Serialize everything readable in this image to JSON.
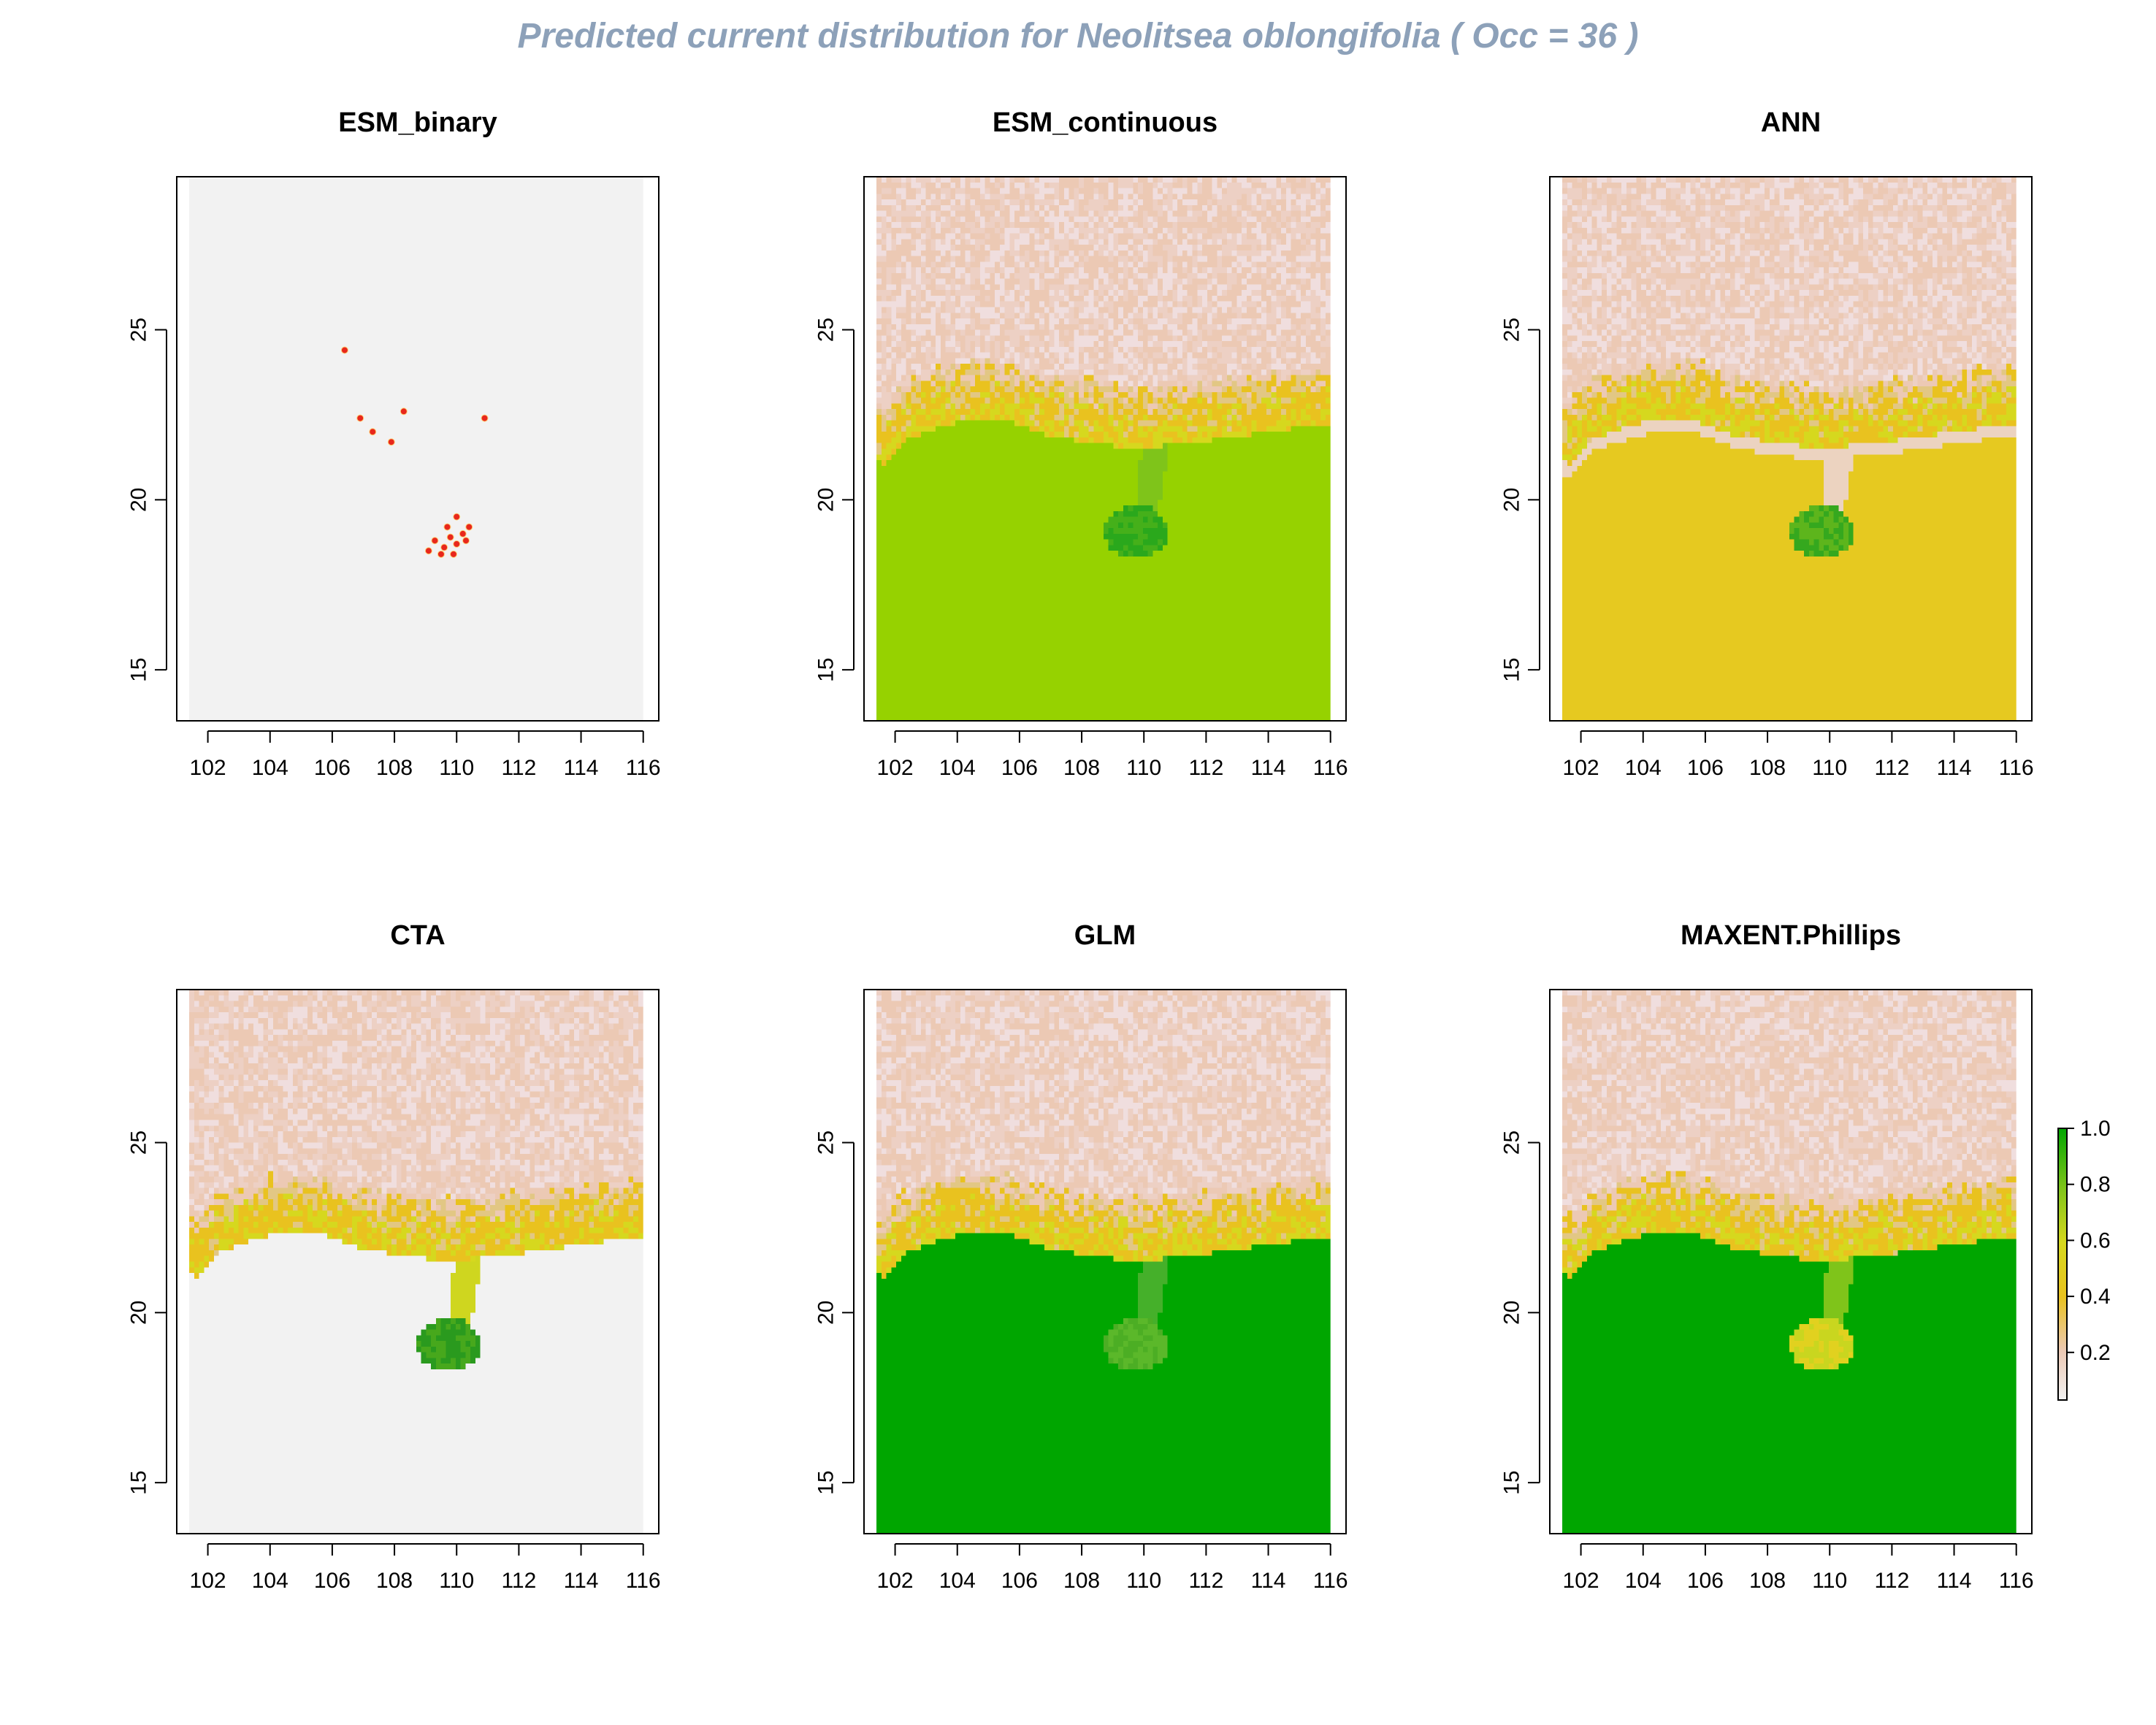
{
  "title": "Predicted current distribution for Neolitsea oblongifolia  ( Occ =  36  )",
  "colors": {
    "title": "#8da1b9",
    "na_background": "#f2f2f2",
    "scale": [
      "#f2f2f2",
      "#ecc9b4",
      "#e9c21f",
      "#d6d81e",
      "#7fc41a",
      "#00a600"
    ],
    "presence": "#1a9a1a",
    "occurrence_point": "#e8271c"
  },
  "chart_data": [
    {
      "type": "heatmap",
      "title": "ESM_binary",
      "xlabel": "",
      "ylabel": "",
      "xlim": [
        101,
        116.5
      ],
      "ylim": [
        13.5,
        29.5
      ],
      "x_ticks": [
        "102",
        "104",
        "106",
        "108",
        "110",
        "112",
        "114",
        "116"
      ],
      "y_ticks": [
        "15",
        "20",
        "25"
      ]
    },
    {
      "type": "heatmap",
      "title": "ESM_continuous",
      "xlabel": "",
      "ylabel": "",
      "xlim": [
        101,
        116.5
      ],
      "ylim": [
        13.5,
        29.5
      ],
      "x_ticks": [
        "102",
        "104",
        "106",
        "108",
        "110",
        "112",
        "114",
        "116"
      ],
      "y_ticks": [
        "15",
        "20",
        "25"
      ]
    },
    {
      "type": "heatmap",
      "title": "ANN",
      "xlabel": "",
      "ylabel": "",
      "xlim": [
        101,
        116.5
      ],
      "ylim": [
        13.5,
        29.5
      ],
      "x_ticks": [
        "102",
        "104",
        "106",
        "108",
        "110",
        "112",
        "114",
        "116"
      ],
      "y_ticks": [
        "15",
        "20",
        "25"
      ]
    },
    {
      "type": "heatmap",
      "title": "CTA",
      "xlabel": "",
      "ylabel": "",
      "xlim": [
        101,
        116.5
      ],
      "ylim": [
        13.5,
        29.5
      ],
      "x_ticks": [
        "102",
        "104",
        "106",
        "108",
        "110",
        "112",
        "114",
        "116"
      ],
      "y_ticks": [
        "15",
        "20",
        "25"
      ]
    },
    {
      "type": "heatmap",
      "title": "GLM",
      "xlabel": "",
      "ylabel": "",
      "xlim": [
        101,
        116.5
      ],
      "ylim": [
        13.5,
        29.5
      ],
      "x_ticks": [
        "102",
        "104",
        "106",
        "108",
        "110",
        "112",
        "114",
        "116"
      ],
      "y_ticks": [
        "15",
        "20",
        "25"
      ]
    },
    {
      "type": "heatmap",
      "title": "MAXENT.Phillips",
      "xlabel": "",
      "ylabel": "",
      "xlim": [
        101,
        116.5
      ],
      "ylim": [
        13.5,
        29.5
      ],
      "x_ticks": [
        "102",
        "104",
        "106",
        "108",
        "110",
        "112",
        "114",
        "116"
      ],
      "y_ticks": [
        "15",
        "20",
        "25"
      ]
    }
  ],
  "legend": {
    "labels": [
      "0.2",
      "0.4",
      "0.6",
      "0.8",
      "1.0"
    ],
    "values": [
      0.2,
      0.4,
      0.6,
      0.8,
      1.0
    ],
    "range": [
      0.03,
      1.0
    ]
  },
  "occurrences": [
    [
      106.4,
      24.4
    ],
    [
      106.9,
      22.4
    ],
    [
      107.3,
      22.0
    ],
    [
      108.3,
      22.6
    ],
    [
      107.9,
      21.7
    ],
    [
      110.9,
      22.4
    ],
    [
      109.1,
      18.5
    ],
    [
      109.3,
      18.8
    ],
    [
      109.6,
      18.6
    ],
    [
      109.8,
      18.9
    ],
    [
      110.0,
      18.7
    ],
    [
      110.2,
      19.0
    ],
    [
      110.4,
      19.2
    ],
    [
      110.0,
      19.5
    ],
    [
      109.7,
      19.2
    ],
    [
      109.5,
      18.4
    ],
    [
      110.3,
      18.8
    ],
    [
      109.9,
      18.4
    ]
  ]
}
